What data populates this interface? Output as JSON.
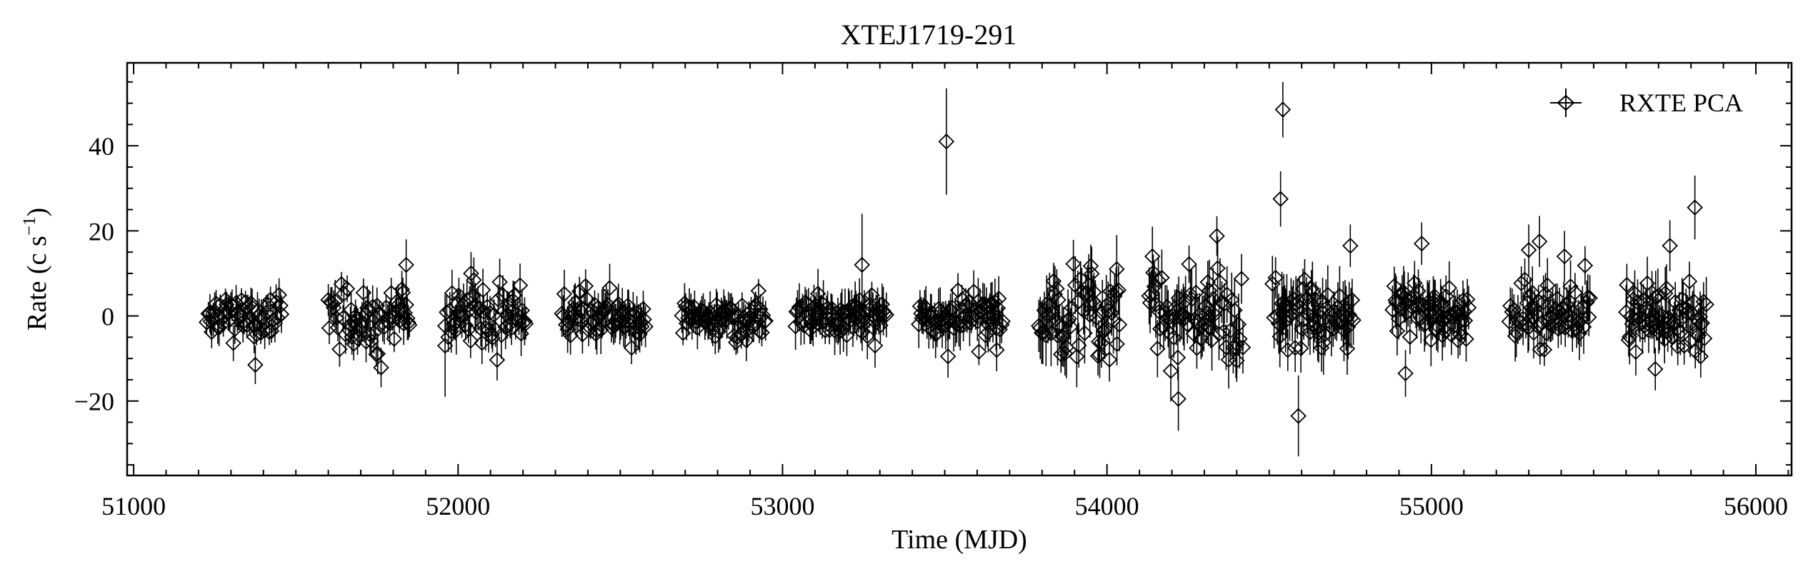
{
  "chart_data": {
    "type": "scatter",
    "title": "XTEJ1719-291",
    "xlabel": "Time (MJD)",
    "ylabel_main": "Rate (c s",
    "ylabel_sup": "−1",
    "ylabel_close": ")",
    "xlim": [
      50980,
      56110
    ],
    "ylim": [
      -37.5,
      59.5
    ],
    "xticks": [
      51000,
      52000,
      53000,
      54000,
      55000,
      56000
    ],
    "xtick_labels": [
      "51000",
      "52000",
      "53000",
      "54000",
      "55000",
      "56000"
    ],
    "yticks": [
      -20,
      0,
      20,
      40
    ],
    "ytick_labels": [
      "−20",
      "0",
      "20",
      "40"
    ],
    "legend": {
      "position": "top-right",
      "entries": [
        "RXTE PCA"
      ]
    },
    "grid": false,
    "series": [
      {
        "name": "RXTE PCA",
        "marker": "diamond",
        "error_bars": "vertical",
        "data_description": "sequence of observation segments",
        "segments": [
          {
            "start": 51225,
            "end": 51460,
            "spread": 3.0,
            "err": 3.5
          },
          {
            "start": 51600,
            "end": 51850,
            "spread": 3.5,
            "err": 4.0
          },
          {
            "start": 51960,
            "end": 52210,
            "spread": 3.5,
            "err": 4.5
          },
          {
            "start": 52320,
            "end": 52580,
            "spread": 3.0,
            "err": 4.5
          },
          {
            "start": 52690,
            "end": 52950,
            "spread": 2.5,
            "err": 4.0
          },
          {
            "start": 53040,
            "end": 53320,
            "spread": 2.5,
            "err": 4.5
          },
          {
            "start": 53420,
            "end": 53680,
            "spread": 2.5,
            "err": 4.5
          },
          {
            "start": 53790,
            "end": 54040,
            "spread": 5.5,
            "err": 6.0
          },
          {
            "start": 54130,
            "end": 54420,
            "spread": 6.0,
            "err": 6.0
          },
          {
            "start": 54510,
            "end": 54760,
            "spread": 5.0,
            "err": 6.0
          },
          {
            "start": 54880,
            "end": 55120,
            "spread": 3.5,
            "err": 5.0
          },
          {
            "start": 55240,
            "end": 55490,
            "spread": 4.0,
            "err": 5.0
          },
          {
            "start": 55600,
            "end": 55850,
            "spread": 4.0,
            "err": 5.0
          }
        ],
        "notable_points": [
          {
            "x": 53505,
            "y": 41,
            "err": 12.5
          },
          {
            "x": 54542,
            "y": 48.5,
            "err": 6.5
          },
          {
            "x": 54535,
            "y": 27.5,
            "err": 6.5
          },
          {
            "x": 54590,
            "y": -23.5,
            "err": 9.5
          },
          {
            "x": 55812,
            "y": 25.5,
            "err": 7.5
          },
          {
            "x": 55735,
            "y": 16.5,
            "err": 6
          },
          {
            "x": 54220,
            "y": -19.5,
            "err": 7.5
          },
          {
            "x": 54750,
            "y": 16.5,
            "err": 5
          },
          {
            "x": 54970,
            "y": 17,
            "err": 5
          },
          {
            "x": 53245,
            "y": 12,
            "err": 12
          },
          {
            "x": 51375,
            "y": -11.5,
            "err": 4.5
          },
          {
            "x": 51960,
            "y": -7,
            "err": 12
          },
          {
            "x": 54920,
            "y": -13.5,
            "err": 5.5
          },
          {
            "x": 55333,
            "y": 17.5,
            "err": 6
          },
          {
            "x": 55690,
            "y": -12.5,
            "err": 5
          },
          {
            "x": 53510,
            "y": -9.5,
            "err": 5
          },
          {
            "x": 54140,
            "y": 14,
            "err": 7
          },
          {
            "x": 54400,
            "y": -10.5,
            "err": 5
          },
          {
            "x": 54030,
            "y": 11,
            "err": 8
          },
          {
            "x": 55830,
            "y": -9.5,
            "err": 5
          },
          {
            "x": 51840,
            "y": 12,
            "err": 6
          },
          {
            "x": 52040,
            "y": 10,
            "err": 5
          },
          {
            "x": 53660,
            "y": -8,
            "err": 5
          },
          {
            "x": 55300,
            "y": 15.5,
            "err": 6
          },
          {
            "x": 55410,
            "y": 14,
            "err": 6
          }
        ]
      }
    ]
  }
}
